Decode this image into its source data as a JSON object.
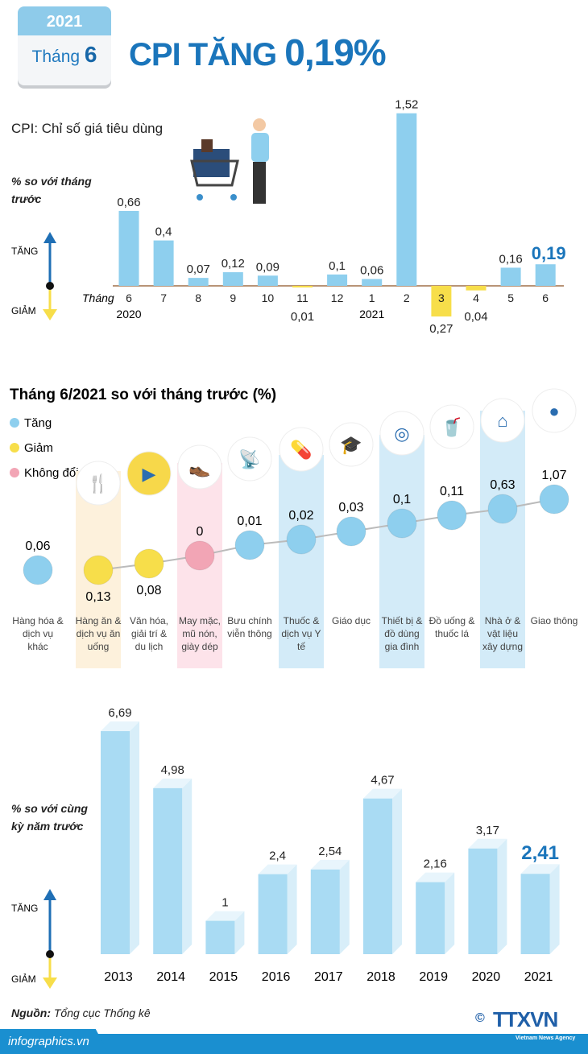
{
  "header": {
    "calendar_year": "2021",
    "calendar_month_label": "Tháng",
    "calendar_month": "6",
    "title_prefix": "CPI TĂNG",
    "title_value": "0,19%"
  },
  "cpi_note": "CPI: Chỉ số giá tiêu dùng",
  "axis_note_1": "% so với tháng trước",
  "axis_note_3": "% so với cùng kỳ năm trước",
  "up_label": "TĂNG",
  "down_label": "GIẢM",
  "colors": {
    "increase": "#8ecfee",
    "decrease": "#f7de4a",
    "unchanged": "#f2a5b5",
    "accent": "#1a75bb"
  },
  "chart_data": [
    {
      "type": "bar",
      "title": "",
      "xlabel": "Tháng",
      "ylabel": "% so với tháng trước",
      "categories": [
        "6",
        "7",
        "8",
        "9",
        "10",
        "11",
        "12",
        "1",
        "2",
        "3",
        "4",
        "5",
        "6"
      ],
      "year_labels": {
        "0": "2020",
        "7": "2021"
      },
      "values": [
        0.66,
        0.4,
        0.07,
        0.12,
        0.09,
        -0.01,
        0.1,
        0.06,
        1.52,
        -0.27,
        -0.04,
        0.16,
        0.19
      ],
      "value_labels": [
        "0,66",
        "0,4",
        "0,07",
        "0,12",
        "0,09",
        "0,01",
        "0,1",
        "0,06",
        "1,52",
        "0,27",
        "0,04",
        "0,16",
        "0,19"
      ],
      "highlight_index": 12
    },
    {
      "type": "scatter",
      "title": "Tháng 6/2021 so với tháng trước (%)",
      "legend": [
        {
          "label": "Tăng",
          "color": "#8ecfee"
        },
        {
          "label": "Giảm",
          "color": "#f7de4a"
        },
        {
          "label": "Không đổi",
          "color": "#f2a5b5"
        }
      ],
      "categories": [
        "Hàng hóa & dịch vụ khác",
        "Hàng ăn & dịch vụ ăn uống",
        "Văn hóa, giải trí & du lịch",
        "May mặc, mũ nón, giày dép",
        "Bưu chính viễn thông",
        "Thuốc & dịch vụ Y tế",
        "Giáo dục",
        "Thiết bị & đồ dùng gia đình",
        "Đồ uống & thuốc lá",
        "Nhà ở & vật liệu xây dựng",
        "Giao thông"
      ],
      "values": [
        0.06,
        -0.13,
        -0.08,
        0,
        0.01,
        0.02,
        0.03,
        0.1,
        0.11,
        0.63,
        1.07
      ],
      "value_labels": [
        "0,06",
        "0,13",
        "0,08",
        "0",
        "0,01",
        "0,02",
        "0,03",
        "0,1",
        "0,11",
        "0,63",
        "1,07"
      ],
      "status": [
        "Tăng",
        "Giảm",
        "Giảm",
        "Không đổi",
        "Tăng",
        "Tăng",
        "Tăng",
        "Tăng",
        "Tăng",
        "Tăng",
        "Tăng"
      ],
      "icons": [
        "",
        "food-icon",
        "film-icon",
        "clothing-icon",
        "antenna-icon",
        "pill-icon",
        "graduation-cap-icon",
        "washing-machine-icon",
        "drink-icon",
        "house-icon",
        "traffic-light-icon"
      ]
    },
    {
      "type": "bar",
      "title": "",
      "ylabel": "% so với cùng kỳ năm trước",
      "categories": [
        "2013",
        "2014",
        "2015",
        "2016",
        "2017",
        "2018",
        "2019",
        "2020",
        "2021"
      ],
      "values": [
        6.69,
        4.98,
        1,
        2.4,
        2.54,
        4.67,
        2.16,
        3.17,
        2.41
      ],
      "value_labels": [
        "6,69",
        "4,98",
        "1",
        "2,4",
        "2,54",
        "4,67",
        "2,16",
        "3,17",
        "2,41"
      ],
      "highlight_index": 8
    }
  ],
  "footer": {
    "source_label": "Nguồn:",
    "source": "Tổng cục Thống kê",
    "site": "infographics.vn",
    "logo": "TTXVN",
    "logo_sub": "Vietnam News Agency",
    "copyright": "©"
  }
}
